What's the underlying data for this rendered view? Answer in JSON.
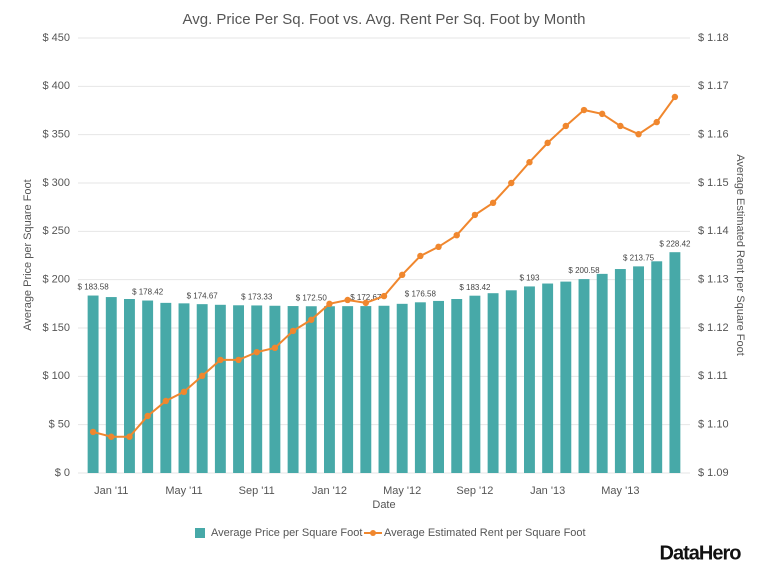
{
  "chart_data": {
    "type": "bar_line",
    "title": "Avg. Price Per Sq. Foot vs. Avg. Rent Per Sq. Foot by Month",
    "x_label": "Date",
    "y_label": "Average Price per Square Foot",
    "y2_label": "Average Estimated Rent per Square Foot",
    "logo": "DataHero",
    "categories": [
      null,
      "Jan '11",
      null,
      null,
      null,
      "May '11",
      null,
      null,
      null,
      "Sep '11",
      null,
      null,
      null,
      "Jan '12",
      null,
      null,
      null,
      "May '12",
      null,
      null,
      null,
      "Sep '12",
      null,
      null,
      null,
      "Jan '13",
      null,
      null,
      null,
      "May '13",
      null,
      null,
      null
    ],
    "series": [
      {
        "name": "Average Price per Square Foot",
        "color": "#47a9a8",
        "kind": "bar",
        "values": [
          183.58,
          182,
          180,
          178.42,
          176,
          175.5,
          174.67,
          174,
          173.5,
          173.33,
          173,
          172.7,
          172.5,
          172.5,
          172.6,
          172.67,
          173,
          175,
          176.58,
          178,
          180,
          183.42,
          186,
          189,
          193,
          196,
          198,
          200.58,
          206,
          211,
          213.75,
          219,
          228.42
        ],
        "value_labels": [
          "$ 183.58",
          null,
          null,
          "$ 178.42",
          null,
          null,
          "$ 174.67",
          null,
          null,
          "$ 173.33",
          null,
          null,
          "$ 172.50",
          null,
          null,
          "$ 172.67",
          null,
          null,
          "$ 176.58",
          null,
          null,
          "$ 183.42",
          null,
          null,
          "$ 193",
          null,
          null,
          "$ 200.58",
          null,
          null,
          "$ 213.75",
          null,
          "$ 228.42"
        ]
      },
      {
        "name": "Average Estimated Rent per Square Foot",
        "color": "#f0872e",
        "kind": "line",
        "axis": "y2",
        "values": [
          1.0985,
          1.0975,
          1.0975,
          1.1018,
          1.1049,
          1.1068,
          1.1101,
          1.1134,
          1.1134,
          1.115,
          1.1159,
          1.1194,
          1.1217,
          1.125,
          1.1258,
          1.1252,
          1.1266,
          1.131,
          1.1349,
          1.1368,
          1.1392,
          1.1434,
          1.1459,
          1.15,
          1.1543,
          1.1583,
          1.1618,
          1.1651,
          1.1643,
          1.1618,
          1.1601,
          1.1626,
          1.1678
        ]
      }
    ],
    "ylim": [
      0,
      450
    ],
    "yticks": [
      {
        "value": 0,
        "label": "$ 0"
      },
      {
        "value": 50,
        "label": "$ 50"
      },
      {
        "value": 100,
        "label": "$ 100"
      },
      {
        "value": 150,
        "label": "$ 150"
      },
      {
        "value": 200,
        "label": "$ 200"
      },
      {
        "value": 250,
        "label": "$ 250"
      },
      {
        "value": 300,
        "label": "$ 300"
      },
      {
        "value": 350,
        "label": "$ 350"
      },
      {
        "value": 400,
        "label": "$ 400"
      },
      {
        "value": 450,
        "label": "$ 450"
      }
    ],
    "y2lim": [
      1.09,
      1.18
    ],
    "y2ticks": [
      {
        "value": 1.09,
        "label": "$ 1.09"
      },
      {
        "value": 1.1,
        "label": "$ 1.10"
      },
      {
        "value": 1.11,
        "label": "$ 1.11"
      },
      {
        "value": 1.12,
        "label": "$ 1.12"
      },
      {
        "value": 1.13,
        "label": "$ 1.13"
      },
      {
        "value": 1.14,
        "label": "$ 1.14"
      },
      {
        "value": 1.15,
        "label": "$ 1.15"
      },
      {
        "value": 1.16,
        "label": "$ 1.16"
      },
      {
        "value": 1.17,
        "label": "$ 1.17"
      },
      {
        "value": 1.18,
        "label": "$ 1.18"
      }
    ],
    "grid": true,
    "legend": "bottom"
  }
}
